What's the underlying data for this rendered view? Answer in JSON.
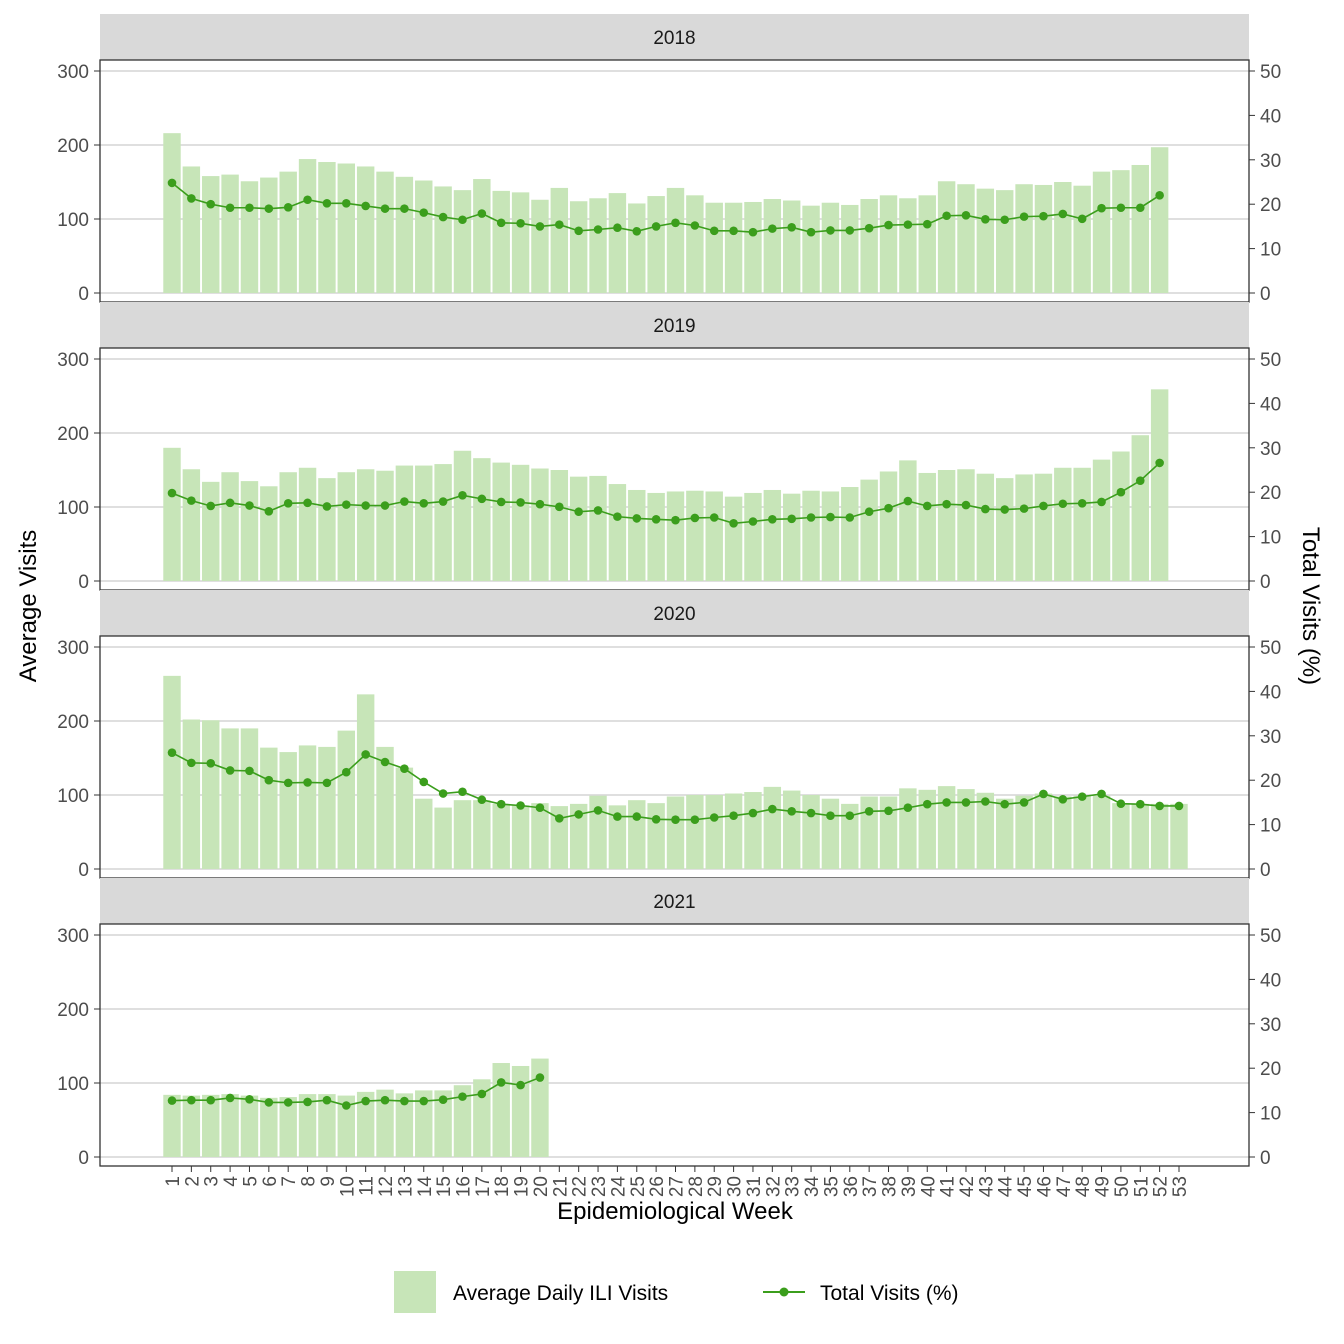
{
  "chart_data": {
    "type": "bar",
    "facet_by": "year",
    "xlabel": "Epidemiological Week",
    "ylabel_left": "Average Visits",
    "ylabel_right": "Total Visits (%)",
    "ylim_left": [
      0,
      300
    ],
    "ylim_right": [
      0,
      50
    ],
    "left_ticks": [
      0,
      100,
      200,
      300
    ],
    "right_ticks": [
      0,
      10,
      20,
      30,
      40,
      50
    ],
    "weeks": [
      1,
      2,
      3,
      4,
      5,
      6,
      7,
      8,
      9,
      10,
      11,
      12,
      13,
      14,
      15,
      16,
      17,
      18,
      19,
      20,
      21,
      22,
      23,
      24,
      25,
      26,
      27,
      28,
      29,
      30,
      31,
      32,
      33,
      34,
      35,
      36,
      37,
      38,
      39,
      40,
      41,
      42,
      43,
      44,
      45,
      46,
      47,
      48,
      49,
      50,
      51,
      52,
      53
    ],
    "grid": "horizontal",
    "legend_position": "bottom",
    "colors": {
      "bar": "#c7e5b8",
      "line": "#3b9e1c",
      "strip": "#d9d9d9"
    },
    "legend": [
      {
        "label": "Average Daily ILI Visits",
        "kind": "bar"
      },
      {
        "label": "Total Visits (%)",
        "kind": "line"
      }
    ],
    "panels": [
      {
        "year": "2018",
        "bars": [
          216,
          171,
          158,
          160,
          151,
          156,
          164,
          181,
          177,
          175,
          171,
          164,
          157,
          152,
          144,
          139,
          154,
          138,
          136,
          126,
          142,
          124,
          128,
          135,
          121,
          131,
          142,
          132,
          122,
          122,
          123,
          127,
          125,
          118,
          122,
          119,
          127,
          132,
          128,
          132,
          151,
          147,
          141,
          139,
          147,
          146,
          150,
          145,
          164,
          166,
          173,
          197
        ],
        "line": [
          24.8,
          21.3,
          20.0,
          19.2,
          19.2,
          19.0,
          19.3,
          21.0,
          20.2,
          20.2,
          19.6,
          19.0,
          19.0,
          18.1,
          17.1,
          16.5,
          17.9,
          15.8,
          15.7,
          15.0,
          15.4,
          14.0,
          14.3,
          14.7,
          13.9,
          15.0,
          15.8,
          15.2,
          14.0,
          14.0,
          13.7,
          14.5,
          14.8,
          13.7,
          14.1,
          14.1,
          14.6,
          15.3,
          15.4,
          15.5,
          17.4,
          17.5,
          16.6,
          16.5,
          17.2,
          17.3,
          17.8,
          16.7,
          19.1,
          19.2,
          19.2,
          22.0
        ]
      },
      {
        "year": "2019",
        "bars": [
          180,
          151,
          134,
          147,
          135,
          128,
          147,
          153,
          139,
          147,
          151,
          149,
          156,
          156,
          158,
          176,
          166,
          160,
          157,
          152,
          150,
          141,
          142,
          131,
          123,
          119,
          121,
          122,
          121,
          114,
          119,
          123,
          118,
          122,
          121,
          127,
          137,
          148,
          163,
          146,
          150,
          151,
          145,
          139,
          144,
          145,
          153,
          153,
          164,
          175,
          197,
          259
        ],
        "line": [
          19.8,
          18.1,
          16.9,
          17.6,
          17.0,
          15.7,
          17.5,
          17.6,
          16.8,
          17.2,
          17.0,
          17.0,
          17.9,
          17.5,
          17.9,
          19.3,
          18.5,
          17.8,
          17.7,
          17.3,
          16.7,
          15.6,
          15.9,
          14.5,
          14.1,
          13.9,
          13.7,
          14.2,
          14.3,
          13.0,
          13.4,
          13.9,
          14.0,
          14.3,
          14.4,
          14.3,
          15.6,
          16.4,
          18.0,
          16.9,
          17.3,
          17.1,
          16.2,
          16.1,
          16.3,
          16.9,
          17.4,
          17.5,
          17.8,
          20.0,
          22.6,
          26.6
        ]
      },
      {
        "year": "2020",
        "bars": [
          261,
          202,
          201,
          190,
          190,
          164,
          158,
          167,
          165,
          187,
          236,
          165,
          137,
          95,
          83,
          93,
          93,
          88,
          86,
          89,
          85,
          88,
          99,
          86,
          93,
          89,
          98,
          100,
          100,
          102,
          104,
          111,
          106,
          100,
          95,
          88,
          98,
          98,
          109,
          107,
          112,
          108,
          103,
          95,
          99,
          102,
          98,
          99,
          99,
          89,
          88,
          88,
          88
        ],
        "line": [
          26.2,
          23.9,
          23.8,
          22.2,
          22.1,
          20.0,
          19.4,
          19.5,
          19.4,
          21.8,
          25.8,
          24.1,
          22.6,
          19.6,
          17.0,
          17.4,
          15.6,
          14.6,
          14.3,
          13.8,
          11.4,
          12.3,
          13.2,
          11.8,
          11.8,
          11.2,
          11.1,
          11.1,
          11.6,
          12.0,
          12.6,
          13.5,
          13.0,
          12.6,
          12.0,
          12.0,
          13.0,
          13.1,
          13.8,
          14.6,
          15.0,
          15.0,
          15.2,
          14.6,
          15.0,
          16.9,
          15.7,
          16.3,
          16.9,
          14.7,
          14.6,
          14.2,
          14.2
        ]
      },
      {
        "year": "2021",
        "bars": [
          84,
          83,
          84,
          85,
          83,
          80,
          81,
          85,
          85,
          83,
          88,
          91,
          86,
          90,
          90,
          97,
          105,
          127,
          123,
          133
        ],
        "line": [
          12.7,
          12.8,
          12.8,
          13.3,
          13.0,
          12.3,
          12.3,
          12.4,
          12.8,
          11.6,
          12.6,
          12.8,
          12.6,
          12.6,
          12.9,
          13.6,
          14.2,
          16.8,
          16.2,
          17.9
        ]
      }
    ]
  }
}
